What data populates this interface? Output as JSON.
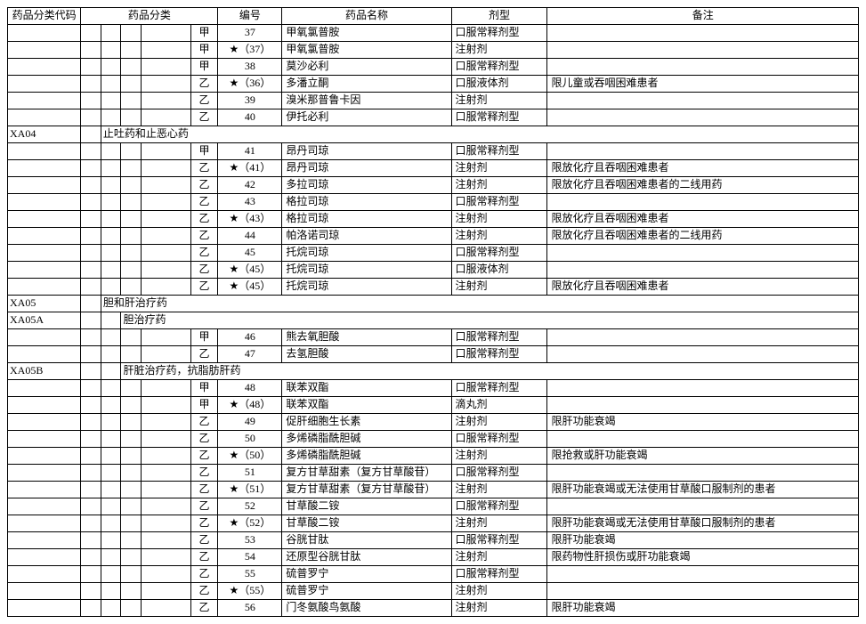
{
  "headers": {
    "code": "药品分类代码",
    "category": "药品分类",
    "number": "编号",
    "drugName": "药品名称",
    "form": "剂型",
    "remark": "备注"
  },
  "rows": [
    {
      "code": "",
      "c1": "",
      "c2": "",
      "c3": "",
      "c4": "",
      "grade": "甲",
      "num": "37",
      "name": "甲氧氯普胺",
      "form": "口服常释剂型",
      "remark": ""
    },
    {
      "code": "",
      "c1": "",
      "c2": "",
      "c3": "",
      "c4": "",
      "grade": "甲",
      "num": "★（37）",
      "name": "甲氧氯普胺",
      "form": "注射剂",
      "remark": ""
    },
    {
      "code": "",
      "c1": "",
      "c2": "",
      "c3": "",
      "c4": "",
      "grade": "甲",
      "num": "38",
      "name": "莫沙必利",
      "form": "口服常释剂型",
      "remark": ""
    },
    {
      "code": "",
      "c1": "",
      "c2": "",
      "c3": "",
      "c4": "",
      "grade": "乙",
      "num": "★（36）",
      "name": "多潘立酮",
      "form": "口服液体剂",
      "remark": "限儿童或吞咽困难患者"
    },
    {
      "code": "",
      "c1": "",
      "c2": "",
      "c3": "",
      "c4": "",
      "grade": "乙",
      "num": "39",
      "name": "溴米那普鲁卡因",
      "form": "注射剂",
      "remark": ""
    },
    {
      "code": "",
      "c1": "",
      "c2": "",
      "c3": "",
      "c4": "",
      "grade": "乙",
      "num": "40",
      "name": "伊托必利",
      "form": "口服常释剂型",
      "remark": ""
    },
    {
      "code": "XA04",
      "c1": "",
      "c2": "止吐药和止恶心药",
      "merge": true,
      "grade": "",
      "num": "",
      "name": "",
      "form": "",
      "remark": ""
    },
    {
      "code": "",
      "c1": "",
      "c2": "",
      "c3": "",
      "c4": "",
      "grade": "甲",
      "num": "41",
      "name": "昂丹司琼",
      "form": "口服常释剂型",
      "remark": ""
    },
    {
      "code": "",
      "c1": "",
      "c2": "",
      "c3": "",
      "c4": "",
      "grade": "乙",
      "num": "★（41）",
      "name": "昂丹司琼",
      "form": "注射剂",
      "remark": "限放化疗且吞咽困难患者"
    },
    {
      "code": "",
      "c1": "",
      "c2": "",
      "c3": "",
      "c4": "",
      "grade": "乙",
      "num": "42",
      "name": "多拉司琼",
      "form": "注射剂",
      "remark": "限放化疗且吞咽困难患者的二线用药"
    },
    {
      "code": "",
      "c1": "",
      "c2": "",
      "c3": "",
      "c4": "",
      "grade": "乙",
      "num": "43",
      "name": "格拉司琼",
      "form": "口服常释剂型",
      "remark": ""
    },
    {
      "code": "",
      "c1": "",
      "c2": "",
      "c3": "",
      "c4": "",
      "grade": "乙",
      "num": "★（43）",
      "name": "格拉司琼",
      "form": "注射剂",
      "remark": "限放化疗且吞咽困难患者"
    },
    {
      "code": "",
      "c1": "",
      "c2": "",
      "c3": "",
      "c4": "",
      "grade": "乙",
      "num": "44",
      "name": "帕洛诺司琼",
      "form": "注射剂",
      "remark": "限放化疗且吞咽困难患者的二线用药"
    },
    {
      "code": "",
      "c1": "",
      "c2": "",
      "c3": "",
      "c4": "",
      "grade": "乙",
      "num": "45",
      "name": "托烷司琼",
      "form": "口服常释剂型",
      "remark": ""
    },
    {
      "code": "",
      "c1": "",
      "c2": "",
      "c3": "",
      "c4": "",
      "grade": "乙",
      "num": "★（45）",
      "name": "托烷司琼",
      "form": "口服液体剂",
      "remark": ""
    },
    {
      "code": "",
      "c1": "",
      "c2": "",
      "c3": "",
      "c4": "",
      "grade": "乙",
      "num": "★（45）",
      "name": "托烷司琼",
      "form": "注射剂",
      "remark": "限放化疗且吞咽困难患者"
    },
    {
      "code": "XA05",
      "c1": "",
      "c2": "胆和肝治疗药",
      "merge": true,
      "grade": "",
      "num": "",
      "name": "",
      "form": "",
      "remark": ""
    },
    {
      "code": "XA05A",
      "c1": "",
      "c2": "",
      "c3": "胆治疗药",
      "merge2": true,
      "grade": "",
      "num": "",
      "name": "",
      "form": "",
      "remark": ""
    },
    {
      "code": "",
      "c1": "",
      "c2": "",
      "c3": "",
      "c4": "",
      "grade": "甲",
      "num": "46",
      "name": "熊去氧胆酸",
      "form": "口服常释剂型",
      "remark": ""
    },
    {
      "code": "",
      "c1": "",
      "c2": "",
      "c3": "",
      "c4": "",
      "grade": "乙",
      "num": "47",
      "name": "去氢胆酸",
      "form": "口服常释剂型",
      "remark": ""
    },
    {
      "code": "XA05B",
      "c1": "",
      "c2": "",
      "c3": "肝脏治疗药，抗脂肪肝药",
      "merge2": true,
      "grade": "",
      "num": "",
      "name": "",
      "form": "",
      "remark": ""
    },
    {
      "code": "",
      "c1": "",
      "c2": "",
      "c3": "",
      "c4": "",
      "grade": "甲",
      "num": "48",
      "name": "联苯双酯",
      "form": "口服常释剂型",
      "remark": ""
    },
    {
      "code": "",
      "c1": "",
      "c2": "",
      "c3": "",
      "c4": "",
      "grade": "甲",
      "num": "★（48）",
      "name": "联苯双酯",
      "form": "滴丸剂",
      "remark": ""
    },
    {
      "code": "",
      "c1": "",
      "c2": "",
      "c3": "",
      "c4": "",
      "grade": "乙",
      "num": "49",
      "name": "促肝细胞生长素",
      "form": "注射剂",
      "remark": "限肝功能衰竭"
    },
    {
      "code": "",
      "c1": "",
      "c2": "",
      "c3": "",
      "c4": "",
      "grade": "乙",
      "num": "50",
      "name": "多烯磷脂酰胆碱",
      "form": "口服常释剂型",
      "remark": ""
    },
    {
      "code": "",
      "c1": "",
      "c2": "",
      "c3": "",
      "c4": "",
      "grade": "乙",
      "num": "★（50）",
      "name": "多烯磷脂酰胆碱",
      "form": "注射剂",
      "remark": "限抢救或肝功能衰竭"
    },
    {
      "code": "",
      "c1": "",
      "c2": "",
      "c3": "",
      "c4": "",
      "grade": "乙",
      "num": "51",
      "name": "复方甘草甜素（复方甘草酸苷）",
      "form": "口服常释剂型",
      "remark": ""
    },
    {
      "code": "",
      "c1": "",
      "c2": "",
      "c3": "",
      "c4": "",
      "grade": "乙",
      "num": "★（51）",
      "name": "复方甘草甜素（复方甘草酸苷）",
      "form": "注射剂",
      "remark": "限肝功能衰竭或无法使用甘草酸口服制剂的患者"
    },
    {
      "code": "",
      "c1": "",
      "c2": "",
      "c3": "",
      "c4": "",
      "grade": "乙",
      "num": "52",
      "name": "甘草酸二铵",
      "form": "口服常释剂型",
      "remark": ""
    },
    {
      "code": "",
      "c1": "",
      "c2": "",
      "c3": "",
      "c4": "",
      "grade": "乙",
      "num": "★（52）",
      "name": "甘草酸二铵",
      "form": "注射剂",
      "remark": "限肝功能衰竭或无法使用甘草酸口服制剂的患者"
    },
    {
      "code": "",
      "c1": "",
      "c2": "",
      "c3": "",
      "c4": "",
      "grade": "乙",
      "num": "53",
      "name": "谷胱甘肽",
      "form": "口服常释剂型",
      "remark": "限肝功能衰竭"
    },
    {
      "code": "",
      "c1": "",
      "c2": "",
      "c3": "",
      "c4": "",
      "grade": "乙",
      "num": "54",
      "name": "还原型谷胱甘肽",
      "form": "注射剂",
      "remark": "限药物性肝损伤或肝功能衰竭"
    },
    {
      "code": "",
      "c1": "",
      "c2": "",
      "c3": "",
      "c4": "",
      "grade": "乙",
      "num": "55",
      "name": "硫普罗宁",
      "form": "口服常释剂型",
      "remark": ""
    },
    {
      "code": "",
      "c1": "",
      "c2": "",
      "c3": "",
      "c4": "",
      "grade": "乙",
      "num": "★（55）",
      "name": "硫普罗宁",
      "form": "注射剂",
      "remark": ""
    },
    {
      "code": "",
      "c1": "",
      "c2": "",
      "c3": "",
      "c4": "",
      "grade": "乙",
      "num": "56",
      "name": "门冬氨酸鸟氨酸",
      "form": "注射剂",
      "remark": "限肝功能衰竭"
    }
  ]
}
